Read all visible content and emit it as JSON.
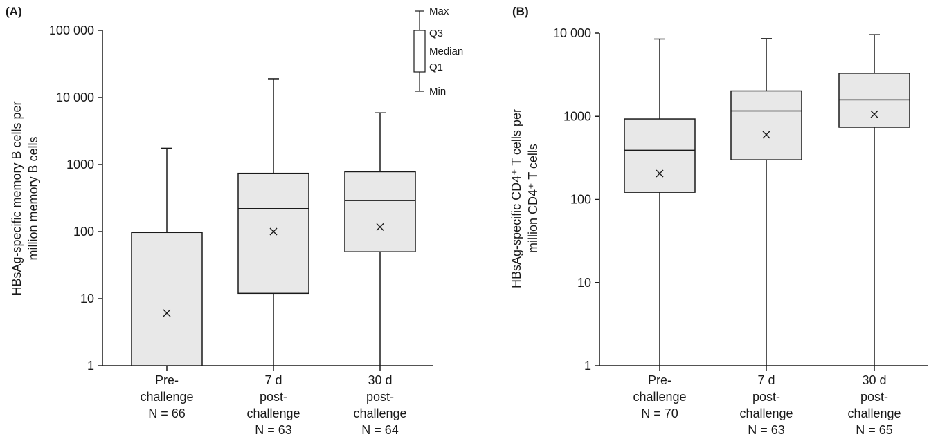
{
  "chart_data": [
    {
      "type": "box",
      "panel_label": "(A)",
      "ylabel_lines": [
        "HBsAg-specific memory B cells per",
        "million memory B cells"
      ],
      "yscale": "log",
      "ylim": [
        1,
        100000
      ],
      "yticks": [
        {
          "value": 1,
          "label": "1"
        },
        {
          "value": 10,
          "label": "10"
        },
        {
          "value": 100,
          "label": "100"
        },
        {
          "value": 1000,
          "label": "1000"
        },
        {
          "value": 10000,
          "label": "10 000"
        },
        {
          "value": 100000,
          "label": "100 000"
        }
      ],
      "categories": [
        {
          "lines": [
            "Pre-",
            "challenge",
            "N = 66"
          ]
        },
        {
          "lines": [
            "7 d",
            "post-",
            "challenge",
            "N = 63"
          ]
        },
        {
          "lines": [
            "30 d",
            "post-",
            "challenge",
            "N = 64"
          ]
        }
      ],
      "boxes": [
        {
          "min": 1,
          "q1": 1,
          "median": 1,
          "q3": 97,
          "max": 1750,
          "mean": 6.1
        },
        {
          "min": 1,
          "q1": 12,
          "median": 220,
          "q3": 740,
          "max": 19000,
          "mean": 100
        },
        {
          "min": 1,
          "q1": 50,
          "median": 290,
          "q3": 780,
          "max": 5900,
          "mean": 117
        }
      ],
      "legend": {
        "labels": [
          "Max",
          "Q3",
          "Median",
          "Q1",
          "Min"
        ],
        "placement": "top-right"
      }
    },
    {
      "type": "box",
      "panel_label": "(B)",
      "ylabel_lines": [
        "HBsAg-specific CD4⁺ T cells per",
        "million CD4⁺ T cells"
      ],
      "yscale": "log",
      "ylim": [
        1,
        10000
      ],
      "yticks": [
        {
          "value": 1,
          "label": "1"
        },
        {
          "value": 10,
          "label": "10"
        },
        {
          "value": 100,
          "label": "100"
        },
        {
          "value": 1000,
          "label": "1000"
        },
        {
          "value": 10000,
          "label": "10 000"
        }
      ],
      "categories": [
        {
          "lines": [
            "Pre-",
            "challenge",
            "N = 70"
          ]
        },
        {
          "lines": [
            "7 d",
            "post-",
            "challenge",
            "N = 63"
          ]
        },
        {
          "lines": [
            "30 d",
            "post-",
            "challenge",
            "N = 65"
          ]
        }
      ],
      "boxes": [
        {
          "min": 1,
          "q1": 122,
          "median": 390,
          "q3": 930,
          "max": 8500,
          "mean": 205
        },
        {
          "min": 1,
          "q1": 300,
          "median": 1160,
          "q3": 2020,
          "max": 8600,
          "mean": 600
        },
        {
          "min": 1,
          "q1": 740,
          "median": 1580,
          "q3": 3300,
          "max": 9600,
          "mean": 1060
        }
      ]
    }
  ],
  "colors": {
    "box_fill": "#e8e8e8",
    "stroke": "#1a1a1a"
  }
}
